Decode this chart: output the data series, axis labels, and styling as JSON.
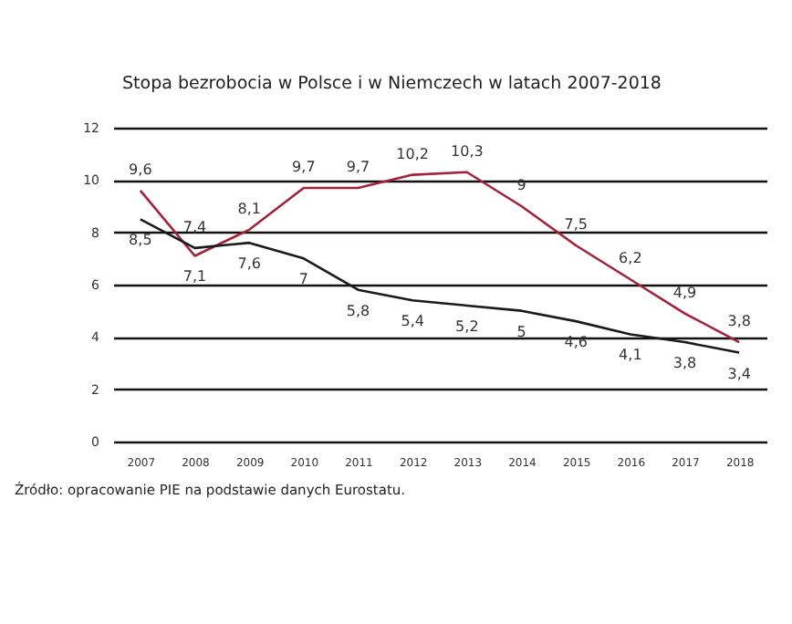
{
  "chart_data": {
    "type": "line",
    "title": "Stopa bezrobocia w Polsce i w Niemczech w latach 2007-2018",
    "annotations": [
      "Źródło: opracowanie PIE na podstawie danych Eurostatu."
    ],
    "categories": [
      "2007",
      "2008",
      "2009",
      "2010",
      "2011",
      "2012",
      "2013",
      "2014",
      "2015",
      "2016",
      "2017",
      "2018"
    ],
    "series": [
      {
        "color": "#a3213a",
        "values": [
          9.6,
          7.1,
          8.1,
          9.7,
          9.7,
          10.2,
          10.3,
          9.0,
          7.5,
          6.2,
          4.9,
          3.8
        ],
        "value_labels": [
          "9,6",
          "7,1",
          "8,1",
          "9,7",
          "9,7",
          "10,2",
          "10,3",
          "9",
          "7,5",
          "6,2",
          "4,9",
          "3,8"
        ]
      },
      {
        "color": "#1a1a1a",
        "values": [
          8.5,
          7.4,
          7.6,
          7.0,
          5.8,
          5.4,
          5.2,
          5.0,
          4.6,
          4.1,
          3.8,
          3.4
        ],
        "value_labels": [
          "8,5",
          "7,4",
          "7,6",
          "7",
          "5,8",
          "5,4",
          "5,2",
          "5",
          "4,6",
          "4,1",
          "3,8",
          "3,4"
        ]
      }
    ],
    "ylim": [
      0,
      12
    ],
    "yticks": [
      0,
      2,
      4,
      6,
      8,
      10,
      12
    ],
    "grid": "y",
    "legend": false,
    "marker": "none",
    "line_style": "solid"
  }
}
